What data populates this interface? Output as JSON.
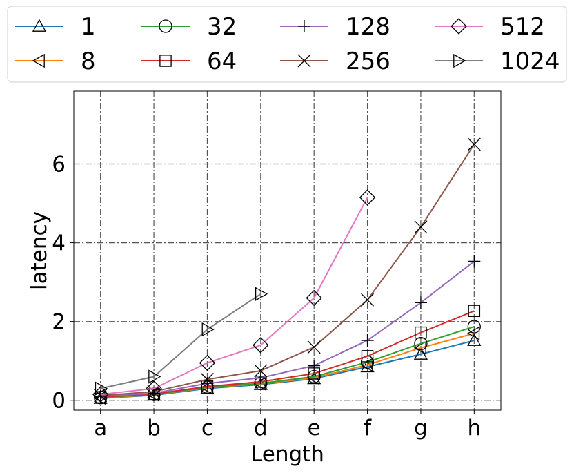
{
  "chart_data": {
    "type": "line",
    "categories": [
      "a",
      "b",
      "c",
      "d",
      "e",
      "f",
      "g",
      "h"
    ],
    "xlabel": "Length",
    "ylabel": "latency",
    "ylim": [
      -0.25,
      7.85
    ],
    "yticks": [
      0,
      2,
      4,
      6
    ],
    "grid": true,
    "legend_position": "top",
    "legend_columns": 4,
    "series": [
      {
        "name": "1",
        "color": "#1f77b4",
        "marker": "triangle-up",
        "values": [
          0.05,
          0.13,
          0.3,
          0.4,
          0.55,
          0.85,
          1.17,
          1.52
        ]
      },
      {
        "name": "8",
        "color": "#ff7f0e",
        "marker": "triangle-left",
        "values": [
          0.06,
          0.14,
          0.32,
          0.42,
          0.57,
          0.9,
          1.33,
          1.7
        ]
      },
      {
        "name": "32",
        "color": "#2ca02c",
        "marker": "circle",
        "values": [
          0.07,
          0.15,
          0.33,
          0.43,
          0.6,
          0.97,
          1.44,
          1.87
        ]
      },
      {
        "name": "64",
        "color": "#d62728",
        "marker": "square",
        "values": [
          0.08,
          0.16,
          0.35,
          0.47,
          0.68,
          1.12,
          1.72,
          2.27
        ]
      },
      {
        "name": "128",
        "color": "#9467bd",
        "marker": "plus",
        "values": [
          0.1,
          0.18,
          0.43,
          0.57,
          0.88,
          1.52,
          2.48,
          3.53
        ]
      },
      {
        "name": "256",
        "color": "#8c564b",
        "marker": "x",
        "values": [
          0.12,
          0.22,
          0.53,
          0.75,
          1.35,
          2.55,
          4.4,
          6.5
        ]
      },
      {
        "name": "512",
        "color": "#e377c2",
        "marker": "diamond",
        "values": [
          0.15,
          0.3,
          0.95,
          1.4,
          2.6,
          5.15,
          null,
          null
        ]
      },
      {
        "name": "1024",
        "color": "#7f7f7f",
        "marker": "triangle-right",
        "values": [
          0.3,
          0.6,
          1.8,
          2.7,
          null,
          null,
          null,
          null
        ]
      }
    ]
  }
}
